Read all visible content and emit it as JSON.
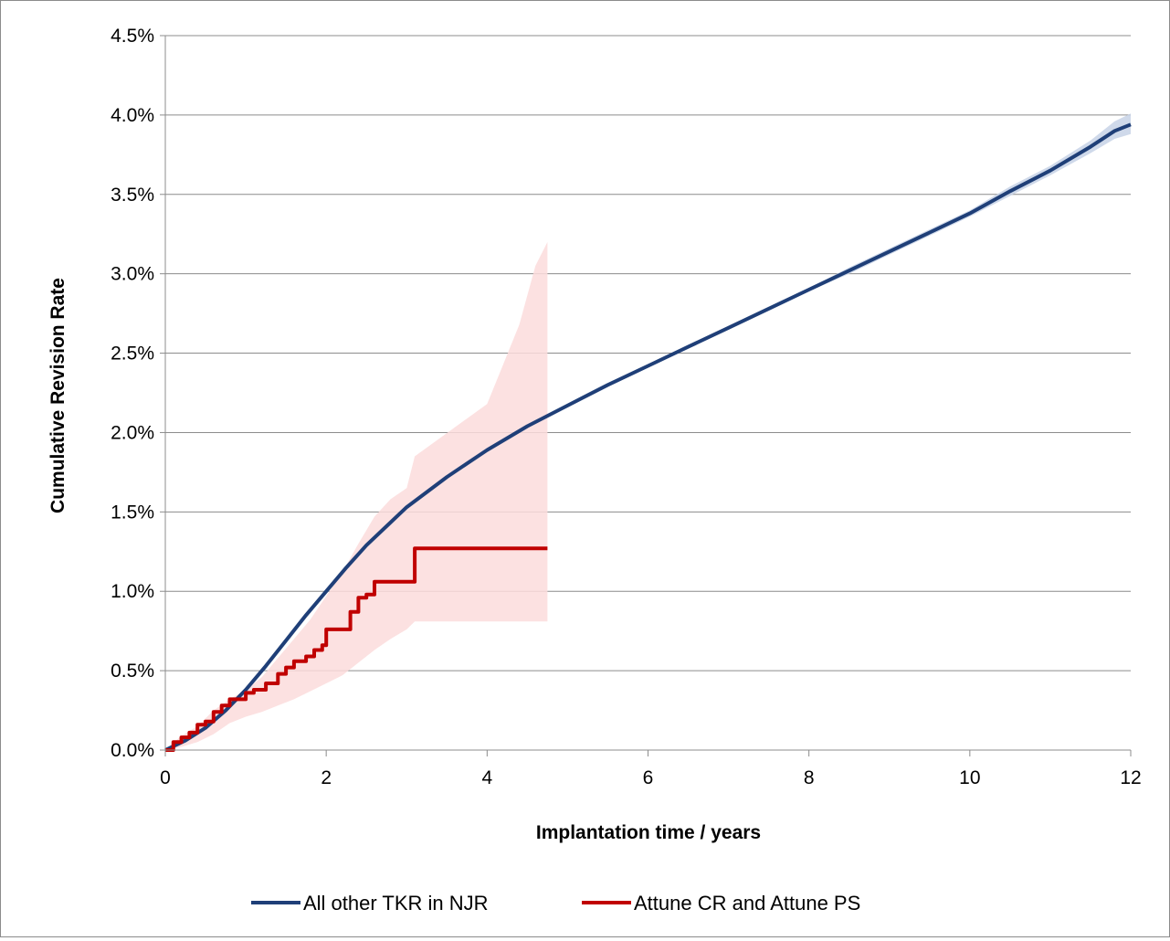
{
  "chart_data": {
    "type": "line",
    "title": "",
    "xlabel": "Implantation time  / years",
    "ylabel": "Cumulative Revision Rate",
    "xlim": [
      0,
      12
    ],
    "ylim": [
      0,
      0.045
    ],
    "x_ticks": [
      0,
      2,
      4,
      6,
      8,
      10,
      12
    ],
    "x_tick_labels": [
      "0",
      "2",
      "4",
      "6",
      "8",
      "10",
      "12"
    ],
    "y_ticks": [
      0,
      0.005,
      0.01,
      0.015,
      0.02,
      0.025,
      0.03,
      0.035,
      0.04,
      0.045
    ],
    "y_tick_labels": [
      "0.0%",
      "0.5%",
      "1.0%",
      "1.5%",
      "2.0%",
      "2.5%",
      "3.0%",
      "3.5%",
      "4.0%",
      "4.5%"
    ],
    "grid": "horizontal",
    "legend_position": "bottom",
    "series": [
      {
        "name": "All other TKR in NJR",
        "color": "#1f3f78",
        "band_color": "#c7d2e6",
        "x": [
          0,
          0.25,
          0.5,
          0.75,
          1.0,
          1.25,
          1.5,
          1.75,
          2.0,
          2.25,
          2.5,
          2.75,
          3.0,
          3.5,
          4.0,
          4.5,
          5.0,
          5.5,
          6.0,
          6.5,
          7.0,
          7.5,
          8.0,
          8.5,
          9.0,
          9.5,
          10.0,
          10.5,
          11.0,
          11.5,
          11.8,
          12.0
        ],
        "y": [
          0.0,
          0.0006,
          0.0014,
          0.0025,
          0.0038,
          0.0053,
          0.0069,
          0.0085,
          0.01,
          0.0115,
          0.0129,
          0.0141,
          0.0153,
          0.0172,
          0.0189,
          0.0204,
          0.0217,
          0.023,
          0.0242,
          0.0254,
          0.0266,
          0.0278,
          0.029,
          0.0302,
          0.0314,
          0.0326,
          0.0338,
          0.0352,
          0.0365,
          0.038,
          0.039,
          0.0394
        ],
        "ci_lower": [
          0.0,
          0.0005,
          0.0013,
          0.0024,
          0.0037,
          0.0052,
          0.0068,
          0.0084,
          0.0099,
          0.0114,
          0.0128,
          0.014,
          0.0152,
          0.0171,
          0.0188,
          0.0203,
          0.0216,
          0.0229,
          0.0241,
          0.0253,
          0.0265,
          0.0277,
          0.0289,
          0.03,
          0.0312,
          0.0324,
          0.0336,
          0.0349,
          0.0362,
          0.0376,
          0.0385,
          0.0388
        ],
        "ci_upper": [
          0.0,
          0.0007,
          0.0015,
          0.0026,
          0.0039,
          0.0054,
          0.007,
          0.0086,
          0.0101,
          0.0116,
          0.013,
          0.0142,
          0.0154,
          0.0173,
          0.019,
          0.0205,
          0.0218,
          0.0231,
          0.0243,
          0.0255,
          0.0267,
          0.0279,
          0.0291,
          0.0304,
          0.0316,
          0.0328,
          0.034,
          0.0355,
          0.0368,
          0.0384,
          0.0396,
          0.0401
        ]
      },
      {
        "name": "Attune CR and Attune PS",
        "color": "#c00000",
        "band_color": "#fcdcdc",
        "step": true,
        "x": [
          0,
          0.1,
          0.2,
          0.3,
          0.4,
          0.5,
          0.6,
          0.7,
          0.8,
          1.0,
          1.1,
          1.25,
          1.4,
          1.5,
          1.6,
          1.75,
          1.85,
          1.95,
          2.0,
          2.3,
          2.4,
          2.5,
          2.6,
          3.1,
          4.75
        ],
        "y": [
          0.0,
          0.0005,
          0.0008,
          0.0011,
          0.0016,
          0.0018,
          0.0024,
          0.0028,
          0.0032,
          0.0036,
          0.0038,
          0.0042,
          0.0048,
          0.0052,
          0.0056,
          0.0059,
          0.0063,
          0.0066,
          0.0076,
          0.0087,
          0.0096,
          0.0098,
          0.0106,
          0.0127,
          0.0127
        ],
        "ci_x": [
          0,
          0.2,
          0.4,
          0.6,
          0.8,
          1.0,
          1.2,
          1.4,
          1.6,
          1.8,
          2.0,
          2.2,
          2.4,
          2.6,
          2.8,
          3.0,
          3.1,
          3.4,
          3.7,
          4.0,
          4.2,
          4.4,
          4.6,
          4.75
        ],
        "ci_lower": [
          0.0,
          0.0002,
          0.0005,
          0.001,
          0.0017,
          0.0021,
          0.0024,
          0.0028,
          0.0032,
          0.0037,
          0.0042,
          0.0047,
          0.0055,
          0.0063,
          0.007,
          0.0076,
          0.0081,
          0.0081,
          0.0081,
          0.0081,
          0.0081,
          0.0081,
          0.0081,
          0.0081
        ],
        "ci_upper": [
          0.0,
          0.0009,
          0.0015,
          0.0025,
          0.0032,
          0.0038,
          0.0046,
          0.0058,
          0.007,
          0.0082,
          0.0097,
          0.0112,
          0.013,
          0.0147,
          0.0158,
          0.0165,
          0.0185,
          0.0196,
          0.0207,
          0.0218,
          0.0243,
          0.0268,
          0.0305,
          0.032
        ]
      }
    ]
  }
}
